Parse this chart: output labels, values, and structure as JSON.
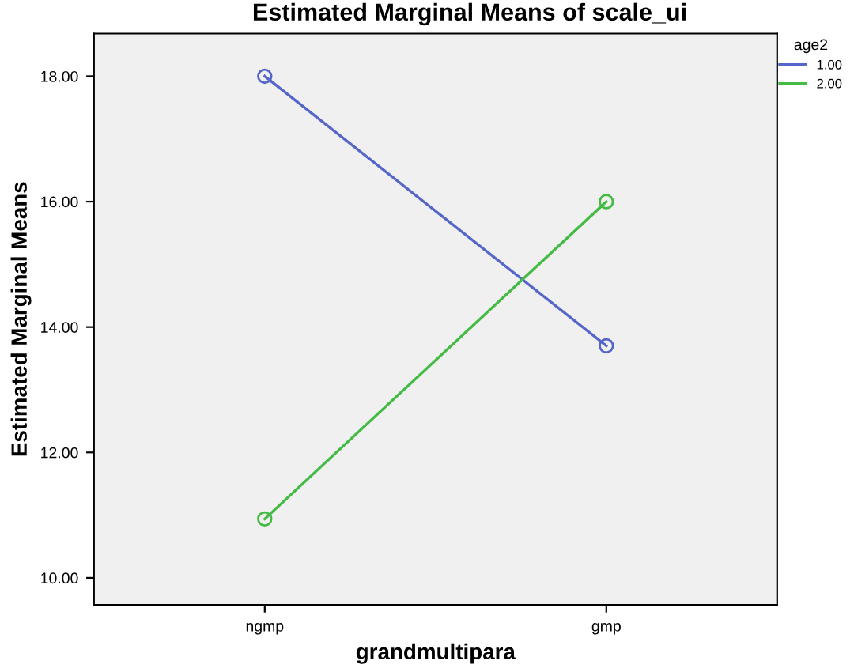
{
  "chart_data": {
    "type": "line",
    "title": "Estimated Marginal Means of scale_ui",
    "xlabel": "grandmultipara",
    "ylabel": "Estimated Marginal Means",
    "legend_title": "age2",
    "categories": [
      "ngmp",
      "gmp"
    ],
    "series": [
      {
        "name": "1.00",
        "color": "#5566c8",
        "values": [
          18.0,
          13.7
        ]
      },
      {
        "name": "2.00",
        "color": "#44bb44",
        "values": [
          10.94,
          16.0
        ]
      }
    ],
    "ylim": [
      9.57,
      18.68
    ],
    "yticks": [
      {
        "value": 10,
        "label": "10.00"
      },
      {
        "value": 12,
        "label": "12.00"
      },
      {
        "value": 14,
        "label": "14.00"
      },
      {
        "value": 16,
        "label": "16.00"
      },
      {
        "value": 18,
        "label": "18.00"
      }
    ],
    "marker": "circle",
    "legend": "top right",
    "grid": false
  }
}
